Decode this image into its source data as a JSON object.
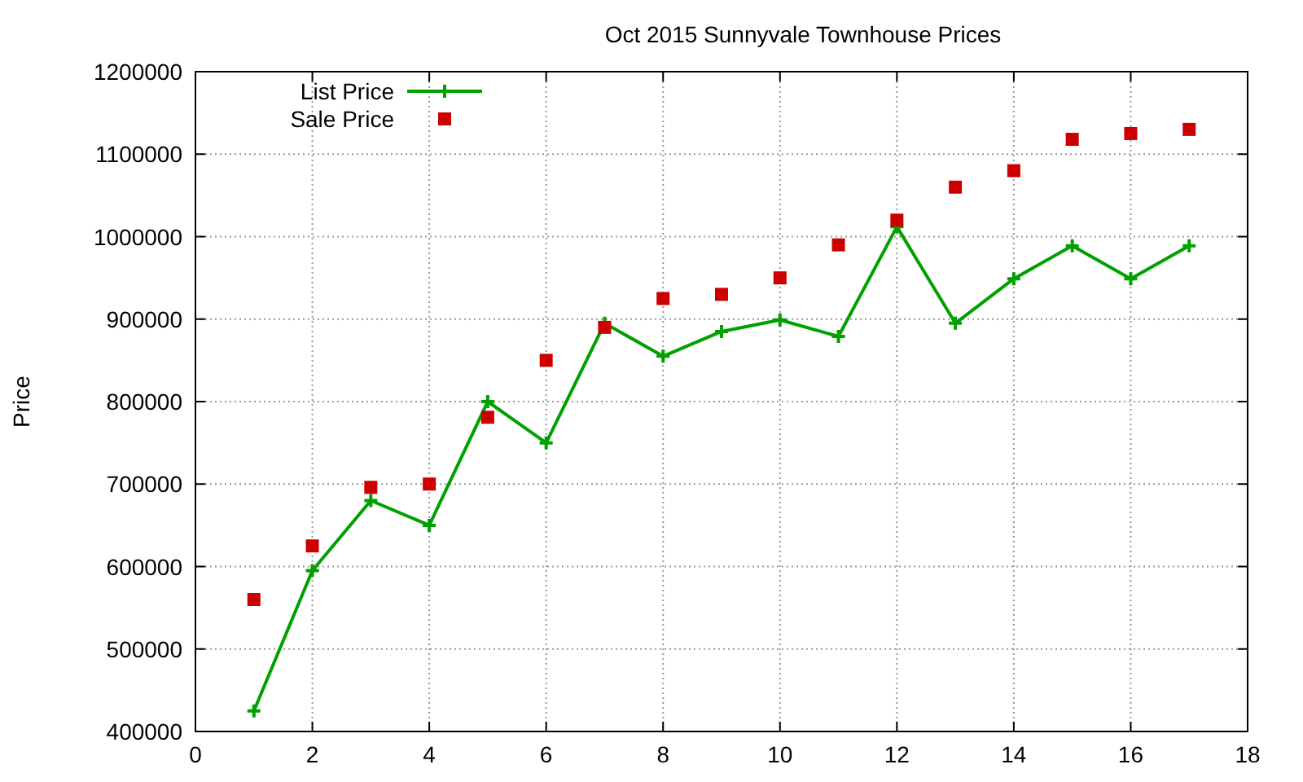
{
  "chart_data": {
    "type": "line",
    "title": "Oct 2015 Sunnyvale Townhouse Prices",
    "ylabel": "Price",
    "x": [
      1,
      2,
      3,
      4,
      5,
      6,
      7,
      8,
      9,
      10,
      11,
      12,
      13,
      14,
      15,
      16,
      17
    ],
    "series": [
      {
        "name": "List Price",
        "color": "#00a000",
        "marker": "cross",
        "values": [
          425000,
          595000,
          680000,
          650000,
          800000,
          750000,
          895000,
          855000,
          885000,
          899000,
          879000,
          1012000,
          895000,
          949000,
          989000,
          949000,
          989000
        ]
      },
      {
        "name": "Sale Price",
        "type": "scatter",
        "color": "#cc0000",
        "marker": "square",
        "values": [
          560000,
          625000,
          696000,
          700000,
          781000,
          850000,
          890000,
          925000,
          930000,
          950000,
          990000,
          1020000,
          1060000,
          1080000,
          1118000,
          1125000,
          1130000
        ]
      }
    ],
    "xlim": [
      0,
      18
    ],
    "xticks": [
      0,
      2,
      4,
      6,
      8,
      10,
      12,
      14,
      16,
      18
    ],
    "ylim": [
      400000,
      1200000
    ],
    "yticks": [
      400000,
      500000,
      600000,
      700000,
      800000,
      900000,
      1000000,
      1100000,
      1200000
    ],
    "grid": true,
    "legend": "top left"
  }
}
